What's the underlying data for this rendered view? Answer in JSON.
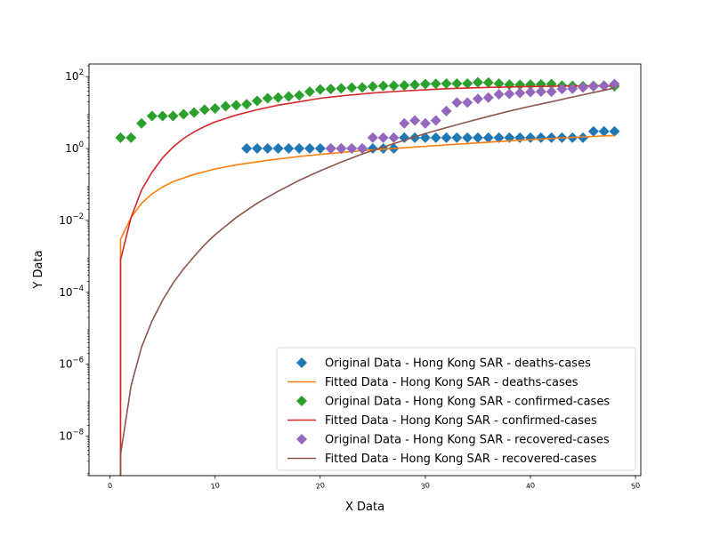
{
  "chart_data": {
    "type": "scatter",
    "title": "",
    "xlabel": "X Data",
    "ylabel": "Y Data",
    "xlim": [
      -2,
      50.5
    ],
    "ylim_log10": [
      -9.1,
      2.35
    ],
    "yscale": "log",
    "grid": false,
    "legend_position": "lower-right",
    "x_ticks": [
      0,
      10,
      20,
      30,
      40,
      50
    ],
    "x_tick_labels": [
      "0",
      "10",
      "20",
      "30",
      "40",
      "50"
    ],
    "y_ticks_exp": [
      -8,
      -6,
      -4,
      -2,
      0,
      2
    ],
    "y_tick_labels": [
      {
        "base": "10",
        "exp": "−8"
      },
      {
        "base": "10",
        "exp": "−6"
      },
      {
        "base": "10",
        "exp": "−4"
      },
      {
        "base": "10",
        "exp": "−2"
      },
      {
        "base": "10",
        "exp": "0"
      },
      {
        "base": "10",
        "exp": "2"
      }
    ],
    "series": [
      {
        "name": "Original Data - Hong Kong SAR - deaths-cases",
        "kind": "markers",
        "color": "#1f77b4",
        "x": [
          13,
          14,
          15,
          16,
          17,
          18,
          19,
          20,
          21,
          22,
          23,
          24,
          25,
          26,
          27,
          28,
          29,
          30,
          31,
          32,
          33,
          34,
          35,
          36,
          37,
          38,
          39,
          40,
          41,
          42,
          43,
          44,
          45,
          46,
          47,
          48
        ],
        "y": [
          1,
          1,
          1,
          1,
          1,
          1,
          1,
          1,
          1,
          1,
          1,
          1,
          1,
          1,
          1,
          2,
          2,
          2,
          2,
          2,
          2,
          2,
          2,
          2,
          2,
          2,
          2,
          2,
          2,
          2,
          2,
          2,
          2,
          3,
          3,
          3
        ]
      },
      {
        "name": "Fitted Data - Hong Kong SAR - deaths-cases",
        "kind": "line",
        "color": "#ff7f0e",
        "x": [
          1,
          2,
          3,
          4,
          5,
          6,
          8,
          10,
          12,
          15,
          18,
          21,
          24,
          27,
          30,
          33,
          36,
          39,
          42,
          45,
          48
        ],
        "y": [
          0.003,
          0.012,
          0.03,
          0.055,
          0.085,
          0.12,
          0.19,
          0.27,
          0.35,
          0.47,
          0.6,
          0.73,
          0.87,
          1.0,
          1.15,
          1.32,
          1.5,
          1.7,
          1.9,
          2.1,
          2.3
        ]
      },
      {
        "name": "Original Data - Hong Kong SAR - confirmed-cases",
        "kind": "markers",
        "color": "#2ca02c",
        "x": [
          1,
          2,
          3,
          4,
          5,
          6,
          7,
          8,
          9,
          10,
          11,
          12,
          13,
          14,
          15,
          16,
          17,
          18,
          19,
          20,
          21,
          22,
          23,
          24,
          25,
          26,
          27,
          28,
          29,
          30,
          31,
          32,
          33,
          34,
          35,
          36,
          37,
          38,
          39,
          40,
          41,
          42,
          43,
          44,
          45,
          46,
          47,
          48
        ],
        "y": [
          2,
          2,
          5,
          8,
          8,
          8,
          9,
          10,
          12,
          13,
          15,
          16,
          17,
          21,
          25,
          26,
          28,
          30,
          38,
          44,
          45,
          47,
          49,
          50,
          53,
          55,
          56,
          57,
          59,
          62,
          63,
          64,
          64,
          64,
          69,
          68,
          64,
          60,
          59,
          60,
          61,
          62,
          56,
          55,
          54,
          55,
          56,
          54
        ]
      },
      {
        "name": "Fitted Data - Hong Kong SAR - confirmed-cases",
        "kind": "line",
        "color": "#d62728",
        "x": [
          1,
          2,
          3,
          4,
          5,
          6,
          7,
          8,
          9,
          10,
          12,
          14,
          16,
          18,
          20,
          22,
          25,
          28,
          32,
          36,
          40,
          44,
          48
        ],
        "y": [
          0.0008,
          0.012,
          0.07,
          0.22,
          0.55,
          1.1,
          1.9,
          2.9,
          4.1,
          5.5,
          8.5,
          12,
          16,
          20,
          25,
          29,
          35,
          40,
          46,
          50,
          53,
          55,
          56
        ]
      },
      {
        "name": "Original Data - Hong Kong SAR - recovered-cases",
        "kind": "markers",
        "color": "#9467bd",
        "x": [
          21,
          22,
          23,
          24,
          25,
          26,
          27,
          28,
          29,
          30,
          31,
          32,
          33,
          34,
          35,
          36,
          37,
          38,
          39,
          40,
          41,
          42,
          43,
          44,
          45,
          46,
          47,
          48
        ],
        "y": [
          1,
          1,
          1,
          1,
          2,
          2,
          2,
          5,
          6,
          5,
          6,
          11,
          19,
          19,
          24,
          26,
          32,
          33,
          35,
          37,
          38,
          38,
          45,
          46,
          50,
          53,
          55,
          62
        ]
      },
      {
        "name": "Fitted Data - Hong Kong SAR - recovered-cases",
        "kind": "line",
        "color": "#8c564b",
        "x": [
          1,
          2,
          3,
          4,
          5,
          6,
          7,
          8,
          9,
          10,
          12,
          14,
          16,
          18,
          20,
          22,
          24,
          26,
          28,
          30,
          32,
          34,
          36,
          38,
          40,
          42,
          44,
          46,
          48
        ],
        "y": [
          3e-09,
          2.5e-07,
          3e-06,
          1.6e-05,
          6e-05,
          0.00018,
          0.00045,
          0.001,
          0.0021,
          0.004,
          0.012,
          0.03,
          0.065,
          0.13,
          0.24,
          0.42,
          0.7,
          1.1,
          1.7,
          2.6,
          3.8,
          5.5,
          7.8,
          11,
          15,
          20,
          27,
          36,
          48
        ]
      }
    ]
  }
}
